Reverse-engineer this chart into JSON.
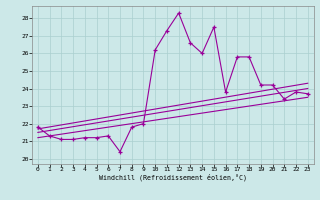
{
  "xlabel": "Windchill (Refroidissement éolien,°C)",
  "bg_color": "#cce8e8",
  "line_color": "#990099",
  "xlim": [
    -0.5,
    23.5
  ],
  "ylim": [
    19.7,
    28.7
  ],
  "yticks": [
    20,
    21,
    22,
    23,
    24,
    25,
    26,
    27,
    28
  ],
  "xticks": [
    0,
    1,
    2,
    3,
    4,
    5,
    6,
    7,
    8,
    9,
    10,
    11,
    12,
    13,
    14,
    15,
    16,
    17,
    18,
    19,
    20,
    21,
    22,
    23
  ],
  "series1_x": [
    0,
    1,
    2,
    3,
    4,
    5,
    6,
    7,
    8,
    9,
    10,
    11,
    12,
    13,
    14,
    15,
    16,
    17,
    18,
    19,
    20,
    21,
    22,
    23
  ],
  "series1_y": [
    21.8,
    21.3,
    21.1,
    21.1,
    21.2,
    21.2,
    21.3,
    20.4,
    21.8,
    22.0,
    26.2,
    27.3,
    28.3,
    26.6,
    26.0,
    27.5,
    23.8,
    25.8,
    25.8,
    24.2,
    24.2,
    23.4,
    23.8,
    23.7
  ],
  "series2_x": [
    0,
    23
  ],
  "series2_y": [
    21.2,
    23.5
  ],
  "series3_x": [
    0,
    23
  ],
  "series3_y": [
    21.5,
    24.0
  ],
  "series4_x": [
    0,
    23
  ],
  "series4_y": [
    21.7,
    24.3
  ]
}
